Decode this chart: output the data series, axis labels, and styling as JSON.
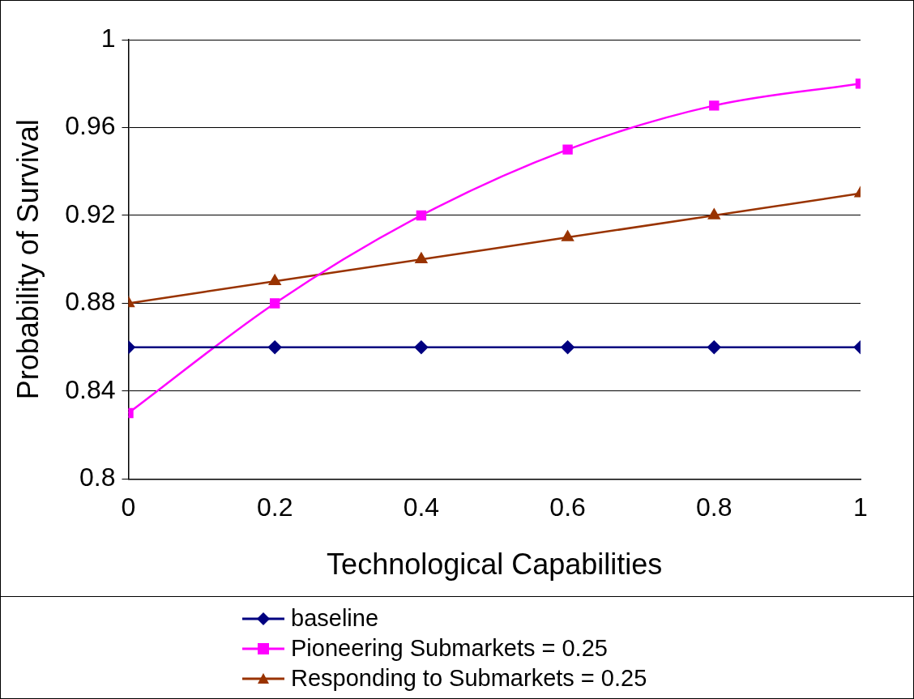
{
  "chart_data": {
    "type": "line",
    "xlabel": "Technological Capabilities",
    "ylabel": "Probability of Survival",
    "x": [
      0,
      0.2,
      0.4,
      0.6,
      0.8,
      1
    ],
    "xlim": [
      0,
      1
    ],
    "xticks": [
      0,
      0.2,
      0.4,
      0.6,
      0.8,
      1
    ],
    "ylim": [
      0.8,
      1
    ],
    "yticks": [
      0.8,
      0.84,
      0.88,
      0.92,
      0.96,
      1
    ],
    "grid": "y",
    "legend": "bottom",
    "series": [
      {
        "name": "baseline",
        "color": "#000080",
        "marker": "diamond",
        "values": [
          0.86,
          0.86,
          0.86,
          0.86,
          0.86,
          0.86
        ]
      },
      {
        "name": "Pioneering Submarkets = 0.25",
        "color": "#ff00ff",
        "marker": "square",
        "values": [
          0.83,
          0.88,
          0.92,
          0.95,
          0.97,
          0.98
        ]
      },
      {
        "name": "Responding to Submarkets = 0.25",
        "color": "#993300",
        "marker": "triangle",
        "values": [
          0.88,
          0.89,
          0.9,
          0.91,
          0.92,
          0.93
        ]
      }
    ]
  }
}
